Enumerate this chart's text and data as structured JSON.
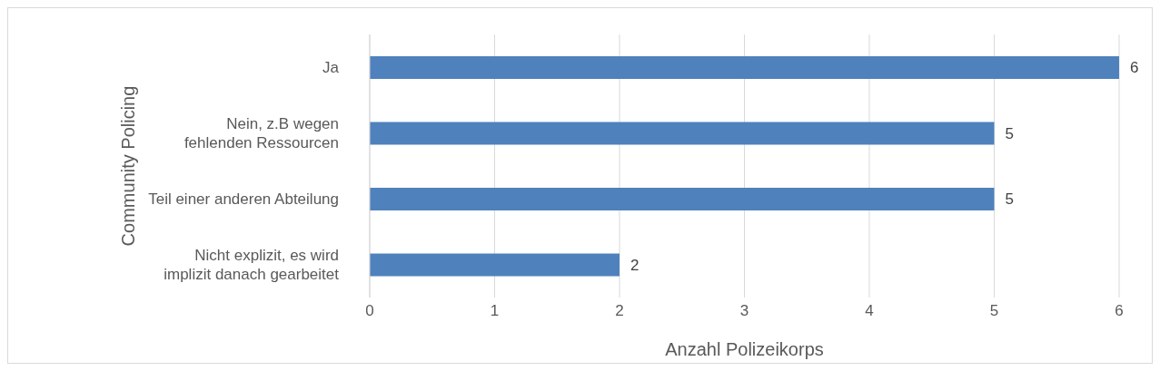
{
  "chart_data": {
    "type": "bar",
    "orientation": "horizontal",
    "categories": [
      "Ja",
      "Nein, z.B wegen fehlenden Ressourcen",
      "Teil einer anderen Abteilung",
      "Nicht explizit, es wird implizit danach gearbeitet"
    ],
    "values": [
      6,
      5,
      5,
      2
    ],
    "color": "#4f81bd",
    "xlabel": "Anzahl Polizeikorps",
    "ylabel": "Community Policing",
    "xlim": [
      0,
      6
    ],
    "xticks": [
      0,
      1,
      2,
      3,
      4,
      5,
      6
    ],
    "grid": "x",
    "data_labels": true
  }
}
